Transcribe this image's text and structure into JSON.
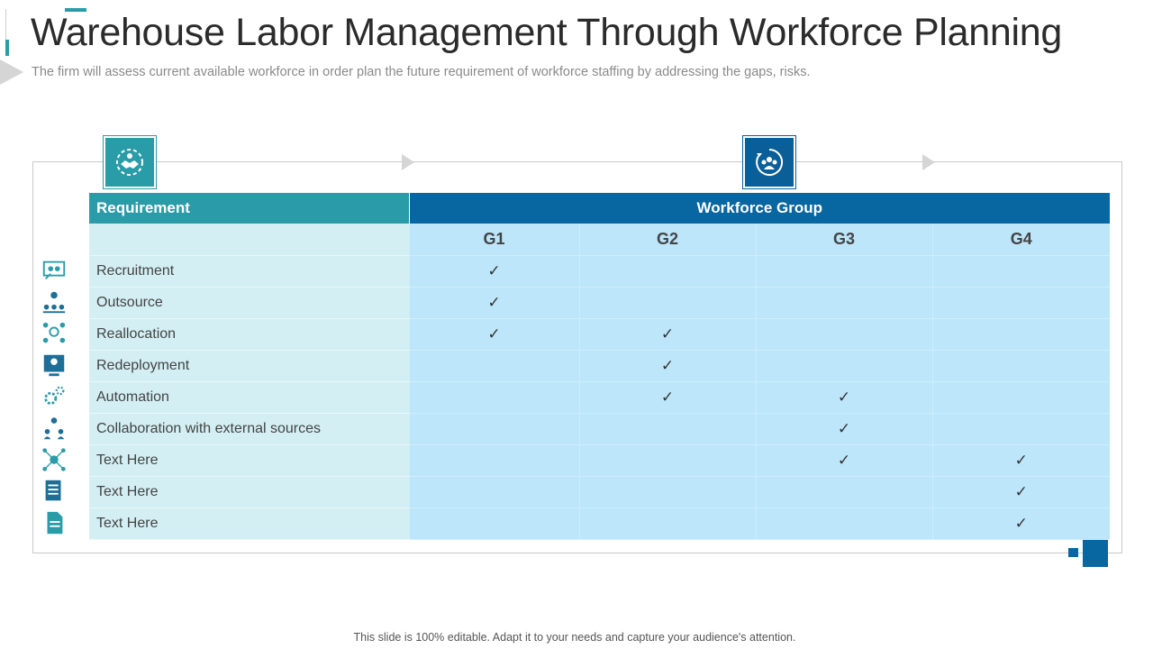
{
  "header": {
    "title": "Warehouse Labor Management Through Workforce Planning",
    "subtitle": "The firm will assess current available workforce in order plan the future requirement of workforce staffing by addressing the gaps, risks."
  },
  "table": {
    "requirement_header": "Requirement",
    "group_header": "Workforce Group",
    "groups": [
      "G1",
      "G2",
      "G3",
      "G4"
    ],
    "check_symbol": "✓",
    "rows": [
      {
        "label": "Recruitment",
        "icon": "recruitment-icon",
        "checks": [
          true,
          false,
          false,
          false
        ]
      },
      {
        "label": "Outsource",
        "icon": "outsource-icon",
        "checks": [
          true,
          false,
          false,
          false
        ]
      },
      {
        "label": "Reallocation",
        "icon": "reallocation-icon",
        "checks": [
          true,
          true,
          false,
          false
        ]
      },
      {
        "label": "Redeployment",
        "icon": "redeployment-icon",
        "checks": [
          false,
          true,
          false,
          false
        ]
      },
      {
        "label": "Automation",
        "icon": "gears-icon",
        "checks": [
          false,
          true,
          true,
          false
        ]
      },
      {
        "label": "Collaboration with external sources",
        "icon": "collaboration-icon",
        "checks": [
          false,
          false,
          true,
          false
        ]
      },
      {
        "label": "Text Here",
        "icon": "network-icon",
        "checks": [
          false,
          false,
          true,
          true
        ]
      },
      {
        "label": "Text Here",
        "icon": "document-icon",
        "checks": [
          false,
          false,
          false,
          true
        ]
      },
      {
        "label": "Text Here",
        "icon": "file-icon",
        "checks": [
          false,
          false,
          false,
          true
        ]
      }
    ]
  },
  "icons": {
    "requirement": "handshake-gear-icon",
    "workforce_group": "team-cycle-icon"
  },
  "colors": {
    "teal": "#2a9ca8",
    "blue": "#0866a0",
    "requirement_row_bg": "#d3eff3",
    "group_cell_bg": "#bde6fb"
  },
  "footer": {
    "note": "This slide is 100% editable. Adapt it to your needs and capture your audience's attention."
  }
}
